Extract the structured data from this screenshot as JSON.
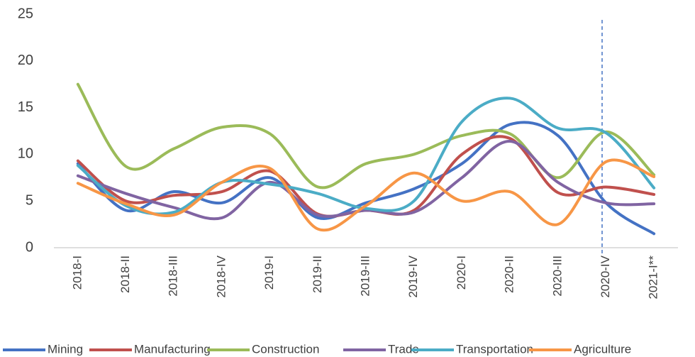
{
  "chart_data": {
    "type": "line",
    "categories": [
      "2018-I",
      "2018-II",
      "2018-III",
      "2018-IV",
      "2019-I",
      "2019-II",
      "2019-III",
      "2019-IV",
      "2020-I",
      "2020-II",
      "2020-III",
      "2020-IV",
      "2021-I**"
    ],
    "series": [
      {
        "name": "Mining",
        "color": "#4472c4",
        "values": [
          9,
          4,
          6,
          4.8,
          7.5,
          3.2,
          4.8,
          6.3,
          9,
          13.2,
          12,
          4.8,
          1.5
        ]
      },
      {
        "name": "Manufacturing",
        "color": "#c0504d",
        "values": [
          9.3,
          5,
          5.6,
          6,
          8.2,
          3.6,
          4,
          4,
          10,
          11.7,
          5.9,
          6.5,
          5.7
        ]
      },
      {
        "name": "Construction",
        "color": "#9bbb59",
        "values": [
          17.5,
          8.7,
          10.6,
          12.9,
          12.2,
          6.5,
          9,
          10,
          12,
          12.2,
          7.5,
          12.4,
          7.8
        ]
      },
      {
        "name": "Trade",
        "color": "#8064a2",
        "values": [
          7.7,
          5.8,
          4.3,
          3.2,
          7,
          3.5,
          4,
          3.8,
          7.5,
          11.4,
          7,
          4.8,
          4.7
        ]
      },
      {
        "name": "Transportation",
        "color": "#4bacc6",
        "values": [
          8.8,
          4.5,
          3.8,
          7,
          6.8,
          5.8,
          4.2,
          5,
          13.5,
          16,
          12.8,
          12.3,
          6.4
        ]
      },
      {
        "name": "Agriculture",
        "color": "#f79646",
        "values": [
          6.9,
          4.7,
          3.5,
          7,
          8.5,
          2,
          4.5,
          8,
          5,
          6,
          2.5,
          9.2,
          7.6
        ]
      }
    ],
    "ylim": [
      0,
      25
    ],
    "yticks": [
      0,
      5,
      10,
      15,
      20,
      25
    ],
    "grid": false,
    "legend": "bottom"
  }
}
